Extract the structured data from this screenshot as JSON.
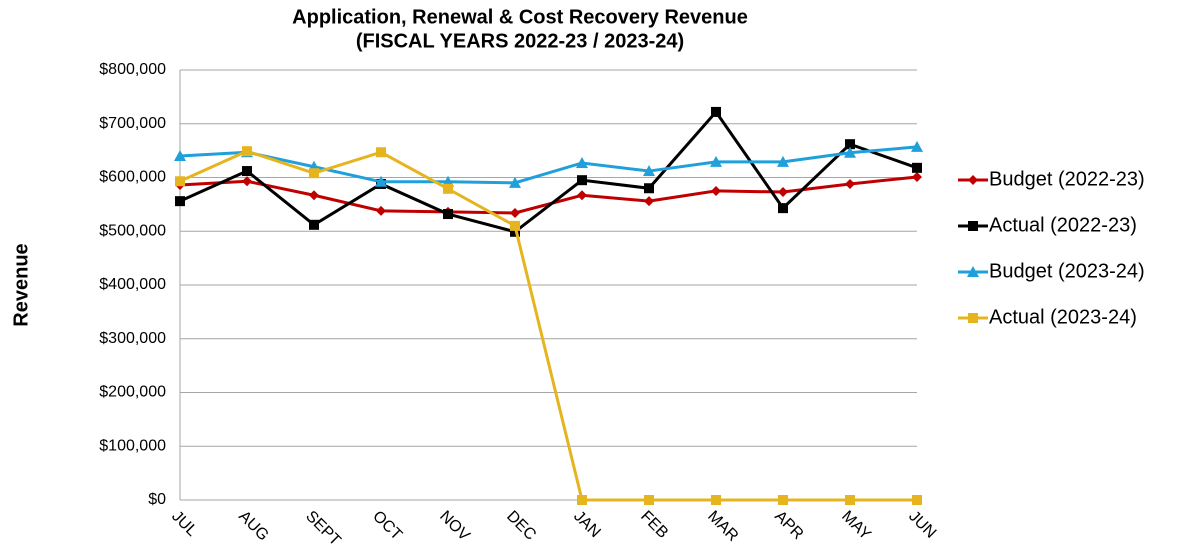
{
  "chart_data": {
    "type": "line",
    "title": "Application, Renewal  & Cost Recovery Revenue",
    "subtitle": "(FISCAL YEARS 2022-23 / 2023-24)",
    "y_label": "Revenue",
    "categories": [
      "JUL",
      "AUG",
      "SEPT",
      "OCT",
      "NOV",
      "DEC",
      "JAN",
      "FEB",
      "MAR",
      "APR",
      "MAY",
      "JUN"
    ],
    "series": [
      {
        "name": "Budget (2022-23)",
        "color": "#c00000",
        "marker": "diamond",
        "values": [
          586000,
          593000,
          567000,
          538000,
          536000,
          534000,
          567000,
          556000,
          575000,
          573000,
          588000,
          601000
        ]
      },
      {
        "name": "Actual (2022-23)",
        "color": "#000000",
        "marker": "square",
        "values": [
          556000,
          612000,
          512000,
          588000,
          532000,
          499000,
          595000,
          580000,
          722000,
          543000,
          662000,
          618000
        ]
      },
      {
        "name": "Budget (2023-24)",
        "color": "#1fa0db",
        "marker": "triangle",
        "values": [
          640000,
          647000,
          620000,
          592000,
          592000,
          590000,
          627000,
          612000,
          629000,
          629000,
          646000,
          657000
        ]
      },
      {
        "name": "Actual (2023-24)",
        "color": "#e6b41e",
        "marker": "square",
        "values": [
          593000,
          649000,
          608000,
          647000,
          579000,
          510000,
          0,
          0,
          0,
          0,
          0,
          0
        ]
      }
    ],
    "ylim": [
      0,
      800000
    ],
    "yticks": [
      {
        "value": 0,
        "label": "$0"
      },
      {
        "value": 100000,
        "label": "$100,000"
      },
      {
        "value": 200000,
        "label": "$200,000"
      },
      {
        "value": 300000,
        "label": "$300,000"
      },
      {
        "value": 400000,
        "label": "$400,000"
      },
      {
        "value": 500000,
        "label": "$500,000"
      },
      {
        "value": 600000,
        "label": "$600,000"
      },
      {
        "value": 700000,
        "label": "$700,000"
      },
      {
        "value": 800000,
        "label": "$800,000"
      }
    ],
    "grid": true,
    "legend": "right"
  }
}
